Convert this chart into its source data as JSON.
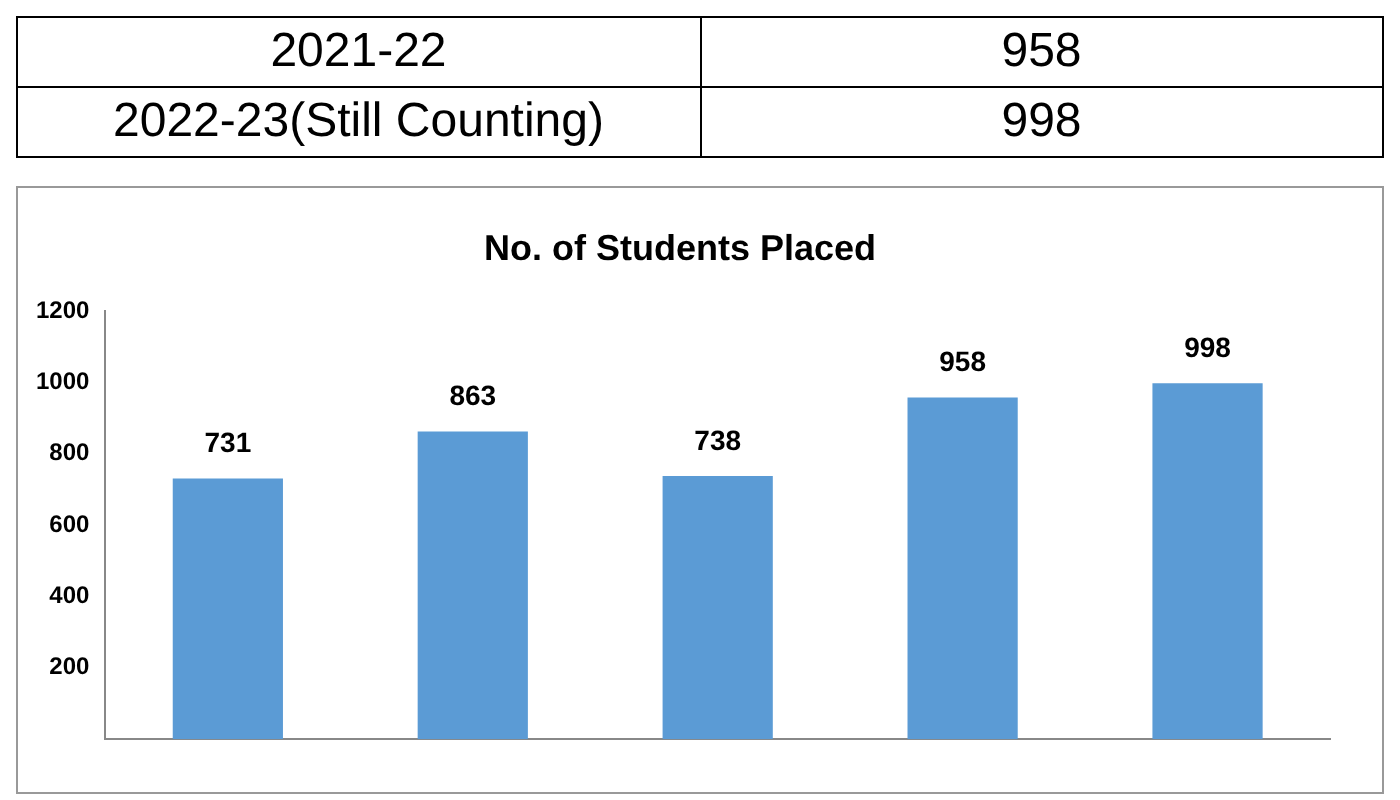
{
  "chart_data": {
    "type": "bar",
    "title": "No. of Students Placed",
    "categories": [
      null,
      null,
      null,
      null,
      null
    ],
    "values": [
      731,
      863,
      738,
      958,
      998
    ],
    "color": "#5b9bd5",
    "ylim": [
      0,
      1200
    ],
    "yticks": [
      200,
      400,
      600,
      800,
      1000,
      1200
    ],
    "data_labels": true,
    "grid": false,
    "legend": false,
    "annotations": [
      "2021-22",
      "958",
      "2022-23(Still Counting)",
      "998"
    ]
  }
}
